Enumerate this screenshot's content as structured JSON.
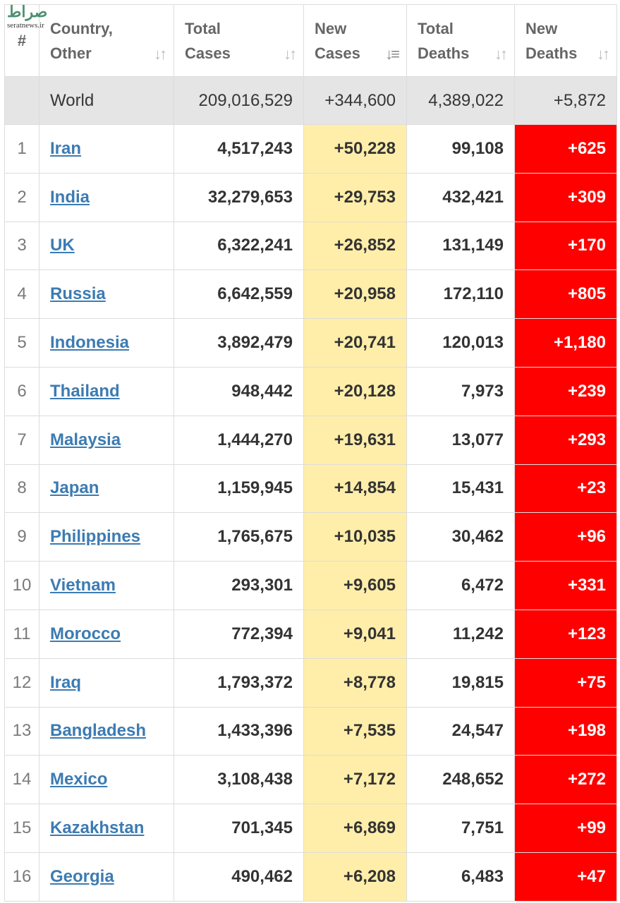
{
  "watermark": {
    "logo": "صراط",
    "url": "seratnews.ir"
  },
  "colors": {
    "new_cases_bg": "#ffeeaa",
    "new_deaths_bg": "#ff0000",
    "link": "#3c7bb2",
    "world_bg": "#e5e5e5"
  },
  "header": {
    "rank": "#",
    "country": [
      "Country,",
      "Other"
    ],
    "total_cases": [
      "Total",
      "Cases"
    ],
    "new_cases": [
      "New",
      "Cases"
    ],
    "total_deaths": [
      "Total",
      "Deaths"
    ],
    "new_deaths": [
      "New",
      "Deaths"
    ],
    "sort_icon": "sort-arrows-icon"
  },
  "world": {
    "country": "World",
    "total_cases": "209,016,529",
    "new_cases": "+344,600",
    "total_deaths": "4,389,022",
    "new_deaths": "+5,872"
  },
  "rows": [
    {
      "rank": "1",
      "country": "Iran",
      "total_cases": "4,517,243",
      "new_cases": "+50,228",
      "total_deaths": "99,108",
      "new_deaths": "+625"
    },
    {
      "rank": "2",
      "country": "India",
      "total_cases": "32,279,653",
      "new_cases": "+29,753",
      "total_deaths": "432,421",
      "new_deaths": "+309"
    },
    {
      "rank": "3",
      "country": "UK",
      "total_cases": "6,322,241",
      "new_cases": "+26,852",
      "total_deaths": "131,149",
      "new_deaths": "+170"
    },
    {
      "rank": "4",
      "country": "Russia",
      "total_cases": "6,642,559",
      "new_cases": "+20,958",
      "total_deaths": "172,110",
      "new_deaths": "+805"
    },
    {
      "rank": "5",
      "country": "Indonesia",
      "total_cases": "3,892,479",
      "new_cases": "+20,741",
      "total_deaths": "120,013",
      "new_deaths": "+1,180"
    },
    {
      "rank": "6",
      "country": "Thailand",
      "total_cases": "948,442",
      "new_cases": "+20,128",
      "total_deaths": "7,973",
      "new_deaths": "+239"
    },
    {
      "rank": "7",
      "country": "Malaysia",
      "total_cases": "1,444,270",
      "new_cases": "+19,631",
      "total_deaths": "13,077",
      "new_deaths": "+293"
    },
    {
      "rank": "8",
      "country": "Japan",
      "total_cases": "1,159,945",
      "new_cases": "+14,854",
      "total_deaths": "15,431",
      "new_deaths": "+23"
    },
    {
      "rank": "9",
      "country": "Philippines",
      "total_cases": "1,765,675",
      "new_cases": "+10,035",
      "total_deaths": "30,462",
      "new_deaths": "+96"
    },
    {
      "rank": "10",
      "country": "Vietnam",
      "total_cases": "293,301",
      "new_cases": "+9,605",
      "total_deaths": "6,472",
      "new_deaths": "+331"
    },
    {
      "rank": "11",
      "country": "Morocco",
      "total_cases": "772,394",
      "new_cases": "+9,041",
      "total_deaths": "11,242",
      "new_deaths": "+123"
    },
    {
      "rank": "12",
      "country": "Iraq",
      "total_cases": "1,793,372",
      "new_cases": "+8,778",
      "total_deaths": "19,815",
      "new_deaths": "+75"
    },
    {
      "rank": "13",
      "country": "Bangladesh",
      "total_cases": "1,433,396",
      "new_cases": "+7,535",
      "total_deaths": "24,547",
      "new_deaths": "+198"
    },
    {
      "rank": "14",
      "country": "Mexico",
      "total_cases": "3,108,438",
      "new_cases": "+7,172",
      "total_deaths": "248,652",
      "new_deaths": "+272"
    },
    {
      "rank": "15",
      "country": "Kazakhstan",
      "total_cases": "701,345",
      "new_cases": "+6,869",
      "total_deaths": "7,751",
      "new_deaths": "+99"
    },
    {
      "rank": "16",
      "country": "Georgia",
      "total_cases": "490,462",
      "new_cases": "+6,208",
      "total_deaths": "6,483",
      "new_deaths": "+47"
    }
  ]
}
